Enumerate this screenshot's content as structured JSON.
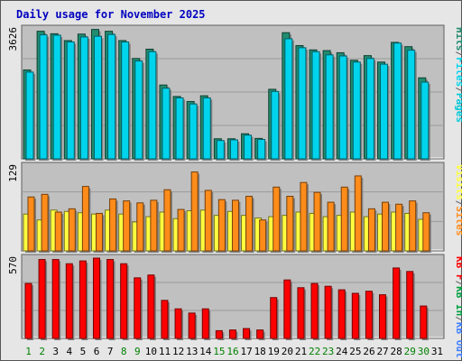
{
  "title": "Daily usage for November 2025",
  "colors": {
    "background": "#ececec",
    "panel": "#c0c0c0",
    "gridline": "#9a9a9a",
    "title": "#0000c0",
    "hits": "#218c6f",
    "files": "#00d4ec",
    "pages": "#00c8d8",
    "visits": "#ffff40",
    "sites": "#ff8c1a",
    "kbin": "#00a040",
    "kbout": "#4080ff",
    "kbf": "#ff0000",
    "weekday_label": "#008000",
    "weekend_label": "#004080"
  },
  "chart_data": [
    {
      "type": "bar",
      "panel": "hits-files",
      "ymax_label": "3626",
      "ylim": [
        0,
        3626
      ],
      "legend_vertical": [
        "Hits",
        "/",
        "Files",
        "/",
        "Pages"
      ],
      "categories": [
        "1",
        "2",
        "3",
        "4",
        "5",
        "6",
        "7",
        "8",
        "9",
        "10",
        "11",
        "12",
        "13",
        "14",
        "15",
        "16",
        "17",
        "18",
        "19",
        "20",
        "21",
        "22",
        "23",
        "24",
        "25",
        "26",
        "27",
        "28",
        "29",
        "30",
        "31"
      ],
      "series": [
        {
          "name": "Hits",
          "values": [
            2480,
            3560,
            3490,
            3300,
            3480,
            3610,
            3560,
            3300,
            2800,
            3060,
            2060,
            1740,
            1600,
            1760,
            560,
            560,
            700,
            570,
            1940,
            3520,
            3160,
            3040,
            3020,
            2960,
            2750,
            2880,
            2700,
            3250,
            3130,
            2260,
            null
          ]
        },
        {
          "name": "Files",
          "values": [
            2420,
            3460,
            3450,
            3260,
            3400,
            3420,
            3470,
            3260,
            2730,
            2990,
            1970,
            1700,
            1530,
            1700,
            510,
            530,
            660,
            540,
            1880,
            3350,
            3100,
            2990,
            2900,
            2870,
            2700,
            2800,
            2640,
            3230,
            3030,
            2140,
            null
          ]
        }
      ]
    },
    {
      "type": "bar",
      "panel": "visits-sites",
      "ymax_label": "129",
      "ylim": [
        0,
        129
      ],
      "legend_vertical": [
        "Visits",
        "/",
        "Sites"
      ],
      "categories": [
        "1",
        "2",
        "3",
        "4",
        "5",
        "6",
        "7",
        "8",
        "9",
        "10",
        "11",
        "12",
        "13",
        "14",
        "15",
        "16",
        "17",
        "18",
        "19",
        "20",
        "21",
        "22",
        "23",
        "24",
        "25",
        "26",
        "27",
        "28",
        "29",
        "30",
        "31"
      ],
      "series": [
        {
          "name": "Visits",
          "values": [
            56,
            47,
            62,
            60,
            58,
            56,
            62,
            56,
            44,
            52,
            59,
            49,
            61,
            62,
            54,
            60,
            54,
            50,
            52,
            54,
            59,
            57,
            52,
            54,
            59,
            52,
            56,
            59,
            57,
            48,
            null
          ]
        },
        {
          "name": "Sites",
          "values": [
            82,
            86,
            59,
            64,
            98,
            57,
            79,
            76,
            73,
            77,
            93,
            63,
            120,
            92,
            78,
            77,
            83,
            47,
            97,
            83,
            104,
            89,
            74,
            97,
            114,
            64,
            74,
            71,
            76,
            58,
            null
          ]
        }
      ]
    },
    {
      "type": "bar",
      "panel": "kbytes",
      "ymax_label": "570",
      "ylim": [
        0,
        570
      ],
      "legend_vertical": [
        "KB F",
        "/",
        "KB In",
        "/",
        "KB Out"
      ],
      "categories": [
        "1",
        "2",
        "3",
        "4",
        "5",
        "6",
        "7",
        "8",
        "9",
        "10",
        "11",
        "12",
        "13",
        "14",
        "15",
        "16",
        "17",
        "18",
        "19",
        "20",
        "21",
        "22",
        "23",
        "24",
        "25",
        "26",
        "27",
        "28",
        "29",
        "30",
        "31"
      ],
      "series": [
        {
          "name": "KB F",
          "values": [
            390,
            560,
            560,
            530,
            550,
            570,
            560,
            530,
            430,
            450,
            270,
            210,
            180,
            210,
            55,
            60,
            70,
            60,
            290,
            415,
            360,
            390,
            370,
            345,
            320,
            335,
            310,
            500,
            475,
            230,
            null
          ]
        }
      ]
    }
  ],
  "x_labels": [
    {
      "text": "1",
      "weekend": true
    },
    {
      "text": "2",
      "weekend": true
    },
    {
      "text": "3",
      "weekend": false
    },
    {
      "text": "4",
      "weekend": false
    },
    {
      "text": "5",
      "weekend": false
    },
    {
      "text": "6",
      "weekend": false
    },
    {
      "text": "7",
      "weekend": false
    },
    {
      "text": "8",
      "weekend": true
    },
    {
      "text": "9",
      "weekend": true
    },
    {
      "text": "10",
      "weekend": false
    },
    {
      "text": "11",
      "weekend": false
    },
    {
      "text": "12",
      "weekend": false
    },
    {
      "text": "13",
      "weekend": false
    },
    {
      "text": "14",
      "weekend": false
    },
    {
      "text": "15",
      "weekend": true
    },
    {
      "text": "16",
      "weekend": true
    },
    {
      "text": "17",
      "weekend": false
    },
    {
      "text": "18",
      "weekend": false
    },
    {
      "text": "19",
      "weekend": false
    },
    {
      "text": "20",
      "weekend": false
    },
    {
      "text": "21",
      "weekend": false
    },
    {
      "text": "22",
      "weekend": true
    },
    {
      "text": "23",
      "weekend": true
    },
    {
      "text": "24",
      "weekend": false
    },
    {
      "text": "25",
      "weekend": false
    },
    {
      "text": "26",
      "weekend": false
    },
    {
      "text": "27",
      "weekend": false
    },
    {
      "text": "28",
      "weekend": false
    },
    {
      "text": "29",
      "weekend": true
    },
    {
      "text": "30",
      "weekend": true
    },
    {
      "text": "31",
      "weekend": false
    }
  ]
}
